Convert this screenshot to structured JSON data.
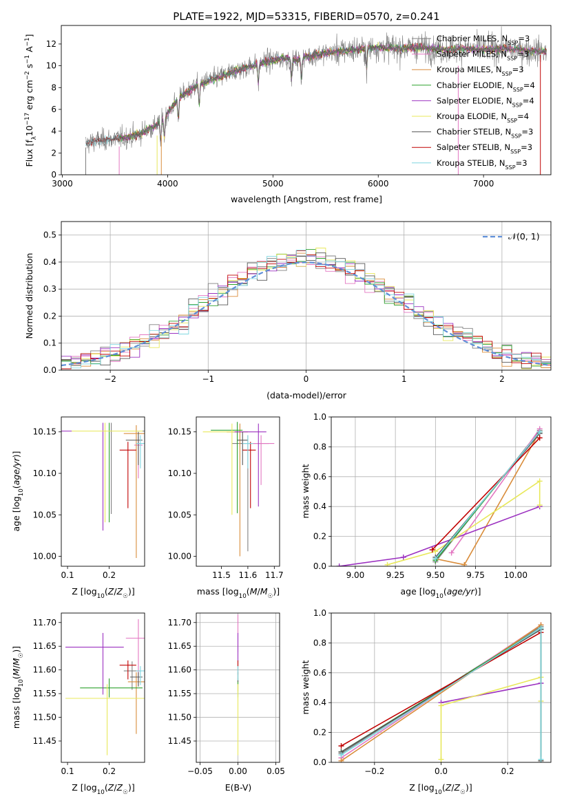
{
  "series_styles": {
    "names": [
      "Chabrier MILES",
      "Salpeter MILES",
      "Kroupa MILES",
      "Chabrier ELODIE",
      "Salpeter ELODIE",
      "Kroupa ELODIE",
      "Chabrier STELIB",
      "Salpeter STELIB",
      "Kroupa STELIB"
    ],
    "colors": [
      "#808080",
      "#e377c2",
      "#d98c3a",
      "#2ca02c",
      "#9b30c0",
      "#e8e85a",
      "#555555",
      "#c00000",
      "#7fd6e0"
    ]
  },
  "chart_data": [
    {
      "panel": "spectrum",
      "type": "line",
      "title": "PLATE=1922, MJD=53315, FIBERID=0570, z=0.241",
      "xlabel": "wavelength [Angstrom, rest frame]",
      "ylabel": "Flux [f_λ 10^-17 erg cm^-2 s^-1 A^-1]",
      "xlim": [
        2990,
        7640
      ],
      "ylim": [
        0,
        13.7
      ],
      "xticks": [
        3000,
        4000,
        5000,
        6000,
        7000
      ],
      "yticks": [
        0,
        2,
        4,
        6,
        8,
        10,
        12
      ],
      "grid": false,
      "legend_position": "top-right",
      "legend": [
        "Chabrier MILES, N_SSP=3",
        "Salpeter MILES, N_SSP=3",
        "Kroupa MILES, N_SSP=3",
        "Chabrier ELODIE, N_SSP=4",
        "Salpeter ELODIE, N_SSP=4",
        "Kroupa ELODIE, N_SSP=4",
        "Chabrier STELIB, N_SSP=3",
        "Salpeter STELIB, N_SSP=3",
        "Kroupa STELIB, N_SSP=3"
      ],
      "continuum_x": [
        3220,
        3300,
        3500,
        3700,
        3900,
        4000,
        4100,
        4300,
        4500,
        4700,
        4900,
        5100,
        5200,
        5400,
        5600,
        5800,
        6000,
        6200,
        6400,
        6600,
        6800,
        7000,
        7200,
        7400,
        7600
      ],
      "continuum_y": [
        2.8,
        3.1,
        3.3,
        3.6,
        4.6,
        5.6,
        7.0,
        8.3,
        9.0,
        9.7,
        10.3,
        10.7,
        10.5,
        11.0,
        11.3,
        11.5,
        11.7,
        11.6,
        11.7,
        11.5,
        11.6,
        11.5,
        11.6,
        11.4,
        11.3
      ]
    },
    {
      "panel": "residuals",
      "type": "line",
      "xlabel": "(data-model)/error",
      "ylabel": "Normed distribution",
      "xlim": [
        -2.5,
        2.5
      ],
      "ylim": [
        0,
        0.55
      ],
      "xticks": [
        -2,
        -1,
        0,
        1,
        2
      ],
      "yticks": [
        0.0,
        0.1,
        0.2,
        0.3,
        0.4,
        0.5
      ],
      "grid": true,
      "legend_position": "top-right",
      "legend": [
        "𝒩(0, 1)"
      ]
    },
    {
      "panel": "age-vs-Z",
      "type": "scatter",
      "xlabel": "Z [log10(Z/Z☉)]",
      "ylabel": "age [log10(age/yr)]",
      "xlim": [
        0.085,
        0.285
      ],
      "ylim": [
        9.988,
        10.168
      ],
      "xticks": [
        0.1,
        0.2
      ],
      "yticks": [
        10.0,
        10.05,
        10.1,
        10.15
      ],
      "points": [
        {
          "x": 0.205,
          "y": 10.151,
          "xerr": [
            0.11,
            0.08
          ],
          "yerr": [
            0.1,
            0.01
          ]
        },
        {
          "x": 0.27,
          "y": 10.134,
          "xerr": [
            0.01,
            0.01
          ],
          "yerr": [
            0.04,
            0.01
          ]
        },
        {
          "x": 0.265,
          "y": 10.148,
          "xerr": [
            0.03,
            0.02
          ],
          "yerr": [
            0.15,
            0.01
          ]
        },
        {
          "x": 0.2,
          "y": 10.151,
          "xerr": [
            0.05,
            0.08
          ],
          "yerr": [
            0.11,
            0.01
          ]
        },
        {
          "x": 0.185,
          "y": 10.151,
          "xerr": [
            0.1,
            0.09
          ],
          "yerr": [
            0.12,
            0.01
          ]
        },
        {
          "x": 0.19,
          "y": 10.151,
          "xerr": [
            0.08,
            0.09
          ],
          "yerr": [
            0.11,
            0.01
          ]
        },
        {
          "x": 0.27,
          "y": 10.14,
          "xerr": [
            0.03,
            0.01
          ],
          "yerr": [
            0.03,
            0.01
          ]
        },
        {
          "x": 0.245,
          "y": 10.128,
          "xerr": [
            0.02,
            0.02
          ],
          "yerr": [
            0.07,
            0.01
          ]
        },
        {
          "x": 0.275,
          "y": 10.136,
          "xerr": [
            0.01,
            0.01
          ],
          "yerr": [
            0.03,
            0.01
          ]
        }
      ]
    },
    {
      "panel": "age-vs-mass",
      "type": "scatter",
      "xlabel": "mass [log10(M/M☉)]",
      "ylabel": "",
      "xlim": [
        11.405,
        11.72
      ],
      "ylim": [
        9.988,
        10.168
      ],
      "xticks": [
        11.5,
        11.6,
        11.7
      ],
      "yticks": [
        10.0,
        10.05,
        10.1,
        10.15
      ],
      "points": [
        {
          "x": 11.6,
          "y": 10.136,
          "xerr": [
            0.06,
            0.08
          ],
          "yerr": [
            0.13,
            0.01
          ]
        },
        {
          "x": 11.65,
          "y": 10.136,
          "xerr": [
            0.04,
            0.05
          ],
          "yerr": [
            0.05,
            0.01
          ]
        },
        {
          "x": 11.57,
          "y": 10.15,
          "xerr": [
            0.05,
            0.03
          ],
          "yerr": [
            0.15,
            0.01
          ]
        },
        {
          "x": 11.56,
          "y": 10.152,
          "xerr": [
            0.1,
            0.02
          ],
          "yerr": [
            0.1,
            0.01
          ]
        },
        {
          "x": 11.64,
          "y": 10.15,
          "xerr": [
            0.1,
            0.03
          ],
          "yerr": [
            0.09,
            0.01
          ]
        },
        {
          "x": 11.54,
          "y": 10.15,
          "xerr": [
            0.11,
            0.01
          ],
          "yerr": [
            0.1,
            0.01
          ]
        },
        {
          "x": 11.58,
          "y": 10.14,
          "xerr": [
            0.02,
            0.02
          ],
          "yerr": [
            0.03,
            0.01
          ]
        },
        {
          "x": 11.61,
          "y": 10.128,
          "xerr": [
            0.03,
            0.02
          ],
          "yerr": [
            0.07,
            0.01
          ]
        },
        {
          "x": 11.6,
          "y": 10.136,
          "xerr": [
            0.02,
            0.02
          ],
          "yerr": [
            0.03,
            0.01
          ]
        }
      ]
    },
    {
      "panel": "weight-vs-age",
      "type": "line",
      "xlabel": "age [log10(age/yr)]",
      "ylabel": "mass weight",
      "xlim": [
        8.85,
        10.22
      ],
      "ylim": [
        0,
        1.0
      ],
      "xticks": [
        9.0,
        9.25,
        9.5,
        9.75,
        10.0
      ],
      "yticks": [
        0.0,
        0.2,
        0.4,
        0.6,
        0.8,
        1.0
      ],
      "grid": true,
      "series": [
        {
          "x": [
            9.5,
            10.15
          ],
          "y": [
            0.03,
            0.91
          ]
        },
        {
          "x": [
            9.6,
            10.15
          ],
          "y": [
            0.09,
            0.92
          ]
        },
        {
          "x": [
            9.5,
            9.68,
            10.15
          ],
          "y": [
            0.05,
            0.01,
            0.9
          ]
        },
        {
          "x": [
            9.5,
            10.15
          ],
          "y": [
            0.04,
            0.9
          ]
        },
        {
          "x": [
            8.9,
            9.3,
            10.15
          ],
          "y": [
            0.0,
            0.06,
            0.4
          ]
        },
        {
          "x": [
            9.2,
            9.5,
            10.15,
            10.15
          ],
          "y": [
            0.01,
            0.1,
            0.57,
            0.41
          ]
        },
        {
          "x": [
            9.5,
            10.15
          ],
          "y": [
            0.06,
            0.89
          ]
        },
        {
          "x": [
            9.48,
            10.15
          ],
          "y": [
            0.11,
            0.86
          ]
        },
        {
          "x": [
            9.5,
            10.15
          ],
          "y": [
            0.05,
            0.9
          ]
        }
      ]
    },
    {
      "panel": "mass-vs-Z",
      "type": "scatter",
      "xlabel": "Z [log10(Z/Z☉)]",
      "ylabel": "mass [log10(M/M☉)]",
      "xlim": [
        0.085,
        0.285
      ],
      "ylim": [
        11.405,
        11.72
      ],
      "xticks": [
        0.1,
        0.2
      ],
      "yticks": [
        11.45,
        11.5,
        11.55,
        11.6,
        11.65,
        11.7
      ],
      "points": [
        {
          "x": 0.255,
          "y": 11.598,
          "xerr": [
            0.02,
            0.02
          ],
          "yerr": [
            0.04,
            0.02
          ]
        },
        {
          "x": 0.27,
          "y": 11.667,
          "xerr": [
            0.03,
            0.02
          ],
          "yerr": [
            0.1,
            0.04
          ]
        },
        {
          "x": 0.265,
          "y": 11.575,
          "xerr": [
            0.02,
            0.02
          ],
          "yerr": [
            0.11,
            0.02
          ]
        },
        {
          "x": 0.2,
          "y": 11.562,
          "xerr": [
            0.07,
            0.08
          ],
          "yerr": [
            0.02,
            0.02
          ]
        },
        {
          "x": 0.185,
          "y": 11.648,
          "xerr": [
            0.09,
            0.05
          ],
          "yerr": [
            0.1,
            0.03
          ]
        },
        {
          "x": 0.195,
          "y": 11.54,
          "xerr": [
            0.1,
            0.09
          ],
          "yerr": [
            0.12,
            0.03
          ]
        },
        {
          "x": 0.27,
          "y": 11.585,
          "xerr": [
            0.02,
            0.01
          ],
          "yerr": [
            0.02,
            0.01
          ]
        },
        {
          "x": 0.245,
          "y": 11.61,
          "xerr": [
            0.02,
            0.02
          ],
          "yerr": [
            0.03,
            0.01
          ]
        },
        {
          "x": 0.275,
          "y": 11.598,
          "xerr": [
            0.01,
            0.01
          ],
          "yerr": [
            0.03,
            0.01
          ]
        }
      ]
    },
    {
      "panel": "mass-vs-EBV",
      "type": "scatter",
      "xlabel": "E(B-V)",
      "ylabel": "",
      "xlim": [
        -0.055,
        0.055
      ],
      "ylim": [
        11.405,
        11.72
      ],
      "xticks": [
        -0.05,
        0.0,
        0.05
      ],
      "yticks": [
        11.45,
        11.5,
        11.55,
        11.6,
        11.65,
        11.7
      ],
      "grid": true,
      "points": [
        {
          "x": 0,
          "y": 11.6,
          "yerr": [
            0.02,
            0.02
          ]
        },
        {
          "x": 0,
          "y": 11.667,
          "yerr": [
            0.03,
            0.05
          ]
        },
        {
          "x": 0,
          "y": 11.575,
          "yerr": [
            0.02,
            0.02
          ]
        },
        {
          "x": 0,
          "y": 11.562,
          "yerr": [
            0.02,
            0.02
          ]
        },
        {
          "x": 0,
          "y": 11.648,
          "yerr": [
            0.03,
            0.03
          ]
        },
        {
          "x": 0,
          "y": 11.54,
          "yerr": [
            0.12,
            0.03
          ]
        },
        {
          "x": 0,
          "y": 11.585,
          "yerr": [
            0.01,
            0.01
          ]
        },
        {
          "x": 0,
          "y": 11.61,
          "yerr": [
            0.02,
            0.01
          ]
        },
        {
          "x": 0,
          "y": 11.598,
          "yerr": [
            0.02,
            0.01
          ]
        }
      ]
    },
    {
      "panel": "weight-vs-Z",
      "type": "line",
      "xlabel": "Z [log10(Z/Z☉)]",
      "ylabel": "mass weight",
      "xlim": [
        -0.33,
        0.33
      ],
      "ylim": [
        0,
        1.0
      ],
      "xticks": [
        -0.2,
        0.0,
        0.2
      ],
      "yticks": [
        0.0,
        0.2,
        0.4,
        0.6,
        0.8,
        1.0
      ],
      "grid": true,
      "series": [
        {
          "x": [
            -0.3,
            0.3,
            0.3
          ],
          "y": [
            0.06,
            0.91,
            0.02
          ]
        },
        {
          "x": [
            -0.3,
            0.3,
            0.3
          ],
          "y": [
            0.03,
            0.92,
            0.01
          ]
        },
        {
          "x": [
            -0.3,
            0.3,
            0.3
          ],
          "y": [
            0.01,
            0.92,
            0.01
          ]
        },
        {
          "x": [
            -0.3,
            0.3,
            0.3
          ],
          "y": [
            0.07,
            0.9,
            0.02
          ]
        },
        {
          "x": [
            0.0,
            0.3
          ],
          "y": [
            0.4,
            0.53
          ]
        },
        {
          "x": [
            0.0,
            0.0,
            0.3,
            0.3
          ],
          "y": [
            0.02,
            0.38,
            0.57,
            0.41
          ]
        },
        {
          "x": [
            -0.3,
            0.3,
            0.3
          ],
          "y": [
            0.07,
            0.89,
            0.01
          ]
        },
        {
          "x": [
            -0.3,
            0.3
          ],
          "y": [
            0.11,
            0.87
          ]
        },
        {
          "x": [
            -0.3,
            0.3,
            0.3
          ],
          "y": [
            0.05,
            0.9,
            0.02
          ]
        }
      ]
    }
  ]
}
